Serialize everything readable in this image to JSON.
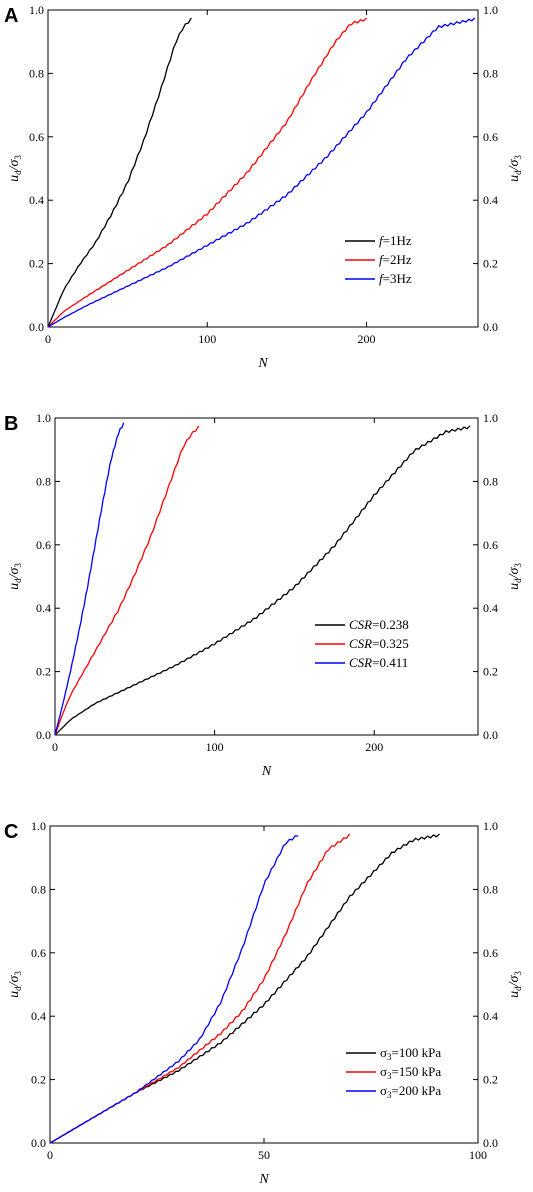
{
  "chart_data": [
    {
      "type": "line",
      "panel_label": "A",
      "xlabel": "N",
      "ylabel": "ud/σ3",
      "xlim": [
        0,
        270
      ],
      "ylim": [
        0,
        1.0
      ],
      "xticks": [
        0,
        100,
        200
      ],
      "yticks": [
        0.0,
        0.2,
        0.4,
        0.6,
        0.8,
        1.0
      ],
      "xtick_labels": [
        "0",
        "100",
        "200"
      ],
      "ytick_labels": [
        "0.0",
        "0.2",
        "0.4",
        "0.6",
        "0.8",
        "1.0"
      ],
      "legend_position": "center-right",
      "series": [
        {
          "name": "f=1Hz",
          "legend_prefix": "f",
          "legend_suffix": "=1Hz",
          "color": "#000000",
          "x": [
            0,
            5,
            10,
            20,
            30,
            40,
            50,
            60,
            70,
            80,
            85,
            90
          ],
          "y": [
            0,
            0.06,
            0.12,
            0.2,
            0.27,
            0.36,
            0.46,
            0.59,
            0.74,
            0.9,
            0.95,
            0.975
          ]
        },
        {
          "name": "f=2Hz",
          "legend_prefix": "f",
          "legend_suffix": "=2Hz",
          "color": "#ff0000",
          "x": [
            0,
            10,
            25,
            50,
            75,
            100,
            125,
            150,
            165,
            180,
            190,
            200
          ],
          "y": [
            0,
            0.05,
            0.1,
            0.18,
            0.26,
            0.36,
            0.49,
            0.65,
            0.78,
            0.9,
            0.96,
            0.975
          ]
        },
        {
          "name": "f=3Hz",
          "legend_prefix": "f",
          "legend_suffix": "=3Hz",
          "color": "#0000ff",
          "x": [
            0,
            10,
            25,
            50,
            75,
            100,
            125,
            150,
            175,
            200,
            225,
            245,
            268
          ],
          "y": [
            0,
            0.03,
            0.07,
            0.13,
            0.19,
            0.26,
            0.33,
            0.42,
            0.54,
            0.68,
            0.85,
            0.95,
            0.975
          ]
        }
      ]
    },
    {
      "type": "line",
      "panel_label": "B",
      "xlabel": "N",
      "ylabel": "ud/σ3",
      "xlim": [
        0,
        265
      ],
      "ylim": [
        0,
        1.0
      ],
      "xticks": [
        0,
        100,
        200
      ],
      "yticks": [
        0.0,
        0.2,
        0.4,
        0.6,
        0.8,
        1.0
      ],
      "xtick_labels": [
        "0",
        "100",
        "200"
      ],
      "ytick_labels": [
        "0.0",
        "0.2",
        "0.4",
        "0.6",
        "0.8",
        "1.0"
      ],
      "legend_position": "center-right",
      "series": [
        {
          "name": "CSR=0.238",
          "legend_prefix": "CSR",
          "legend_suffix": "=0.238",
          "color": "#000000",
          "x": [
            0,
            10,
            25,
            50,
            75,
            100,
            125,
            150,
            175,
            200,
            225,
            245,
            260
          ],
          "y": [
            0,
            0.05,
            0.1,
            0.16,
            0.22,
            0.29,
            0.37,
            0.47,
            0.6,
            0.76,
            0.9,
            0.96,
            0.975
          ]
        },
        {
          "name": "CSR=0.325",
          "legend_prefix": "CSR",
          "legend_suffix": "=0.325",
          "color": "#ff0000",
          "x": [
            0,
            5,
            10,
            20,
            30,
            40,
            50,
            60,
            70,
            80,
            85,
            90
          ],
          "y": [
            0,
            0.07,
            0.13,
            0.22,
            0.31,
            0.4,
            0.51,
            0.63,
            0.77,
            0.91,
            0.95,
            0.975
          ]
        },
        {
          "name": "CSR=0.411",
          "legend_prefix": "CSR",
          "legend_suffix": "=0.411",
          "color": "#0000ff",
          "x": [
            0,
            5,
            10,
            15,
            20,
            25,
            30,
            35,
            40,
            43
          ],
          "y": [
            0,
            0.1,
            0.21,
            0.33,
            0.46,
            0.6,
            0.74,
            0.87,
            0.96,
            0.985
          ]
        }
      ]
    },
    {
      "type": "line",
      "panel_label": "C",
      "xlabel": "N",
      "ylabel": "ud/σ3",
      "xlim": [
        0,
        100
      ],
      "ylim": [
        0,
        1.0
      ],
      "xticks": [
        0,
        50,
        100
      ],
      "yticks": [
        0.0,
        0.2,
        0.4,
        0.6,
        0.8,
        1.0
      ],
      "xtick_labels": [
        "0",
        "50",
        "100"
      ],
      "ytick_labels": [
        "0.0",
        "0.2",
        "0.4",
        "0.6",
        "0.8",
        "1.0"
      ],
      "legend_position": "bottom-right",
      "series": [
        {
          "name": "σ3=100 kPa",
          "legend_prefix": "σ",
          "legend_sub": "3",
          "legend_suffix": "=100 kPa",
          "color": "#000000",
          "x": [
            0,
            5,
            10,
            20,
            30,
            40,
            50,
            60,
            70,
            80,
            85,
            91
          ],
          "y": [
            0,
            0.04,
            0.08,
            0.16,
            0.23,
            0.32,
            0.44,
            0.59,
            0.78,
            0.92,
            0.96,
            0.975
          ]
        },
        {
          "name": "σ3=150 kPa",
          "legend_prefix": "σ",
          "legend_sub": "3",
          "legend_suffix": "=150 kPa",
          "color": "#ff0000",
          "x": [
            0,
            5,
            10,
            20,
            30,
            40,
            45,
            50,
            55,
            60,
            65,
            70
          ],
          "y": [
            0,
            0.04,
            0.08,
            0.16,
            0.24,
            0.35,
            0.42,
            0.52,
            0.66,
            0.82,
            0.93,
            0.975
          ]
        },
        {
          "name": "σ3=200 kPa",
          "legend_prefix": "σ",
          "legend_sub": "3",
          "legend_suffix": "=200 kPa",
          "color": "#0000ff",
          "x": [
            0,
            5,
            10,
            20,
            30,
            35,
            40,
            45,
            50,
            55,
            58
          ],
          "y": [
            0,
            0.04,
            0.08,
            0.16,
            0.26,
            0.33,
            0.45,
            0.62,
            0.82,
            0.95,
            0.975
          ]
        }
      ]
    }
  ]
}
